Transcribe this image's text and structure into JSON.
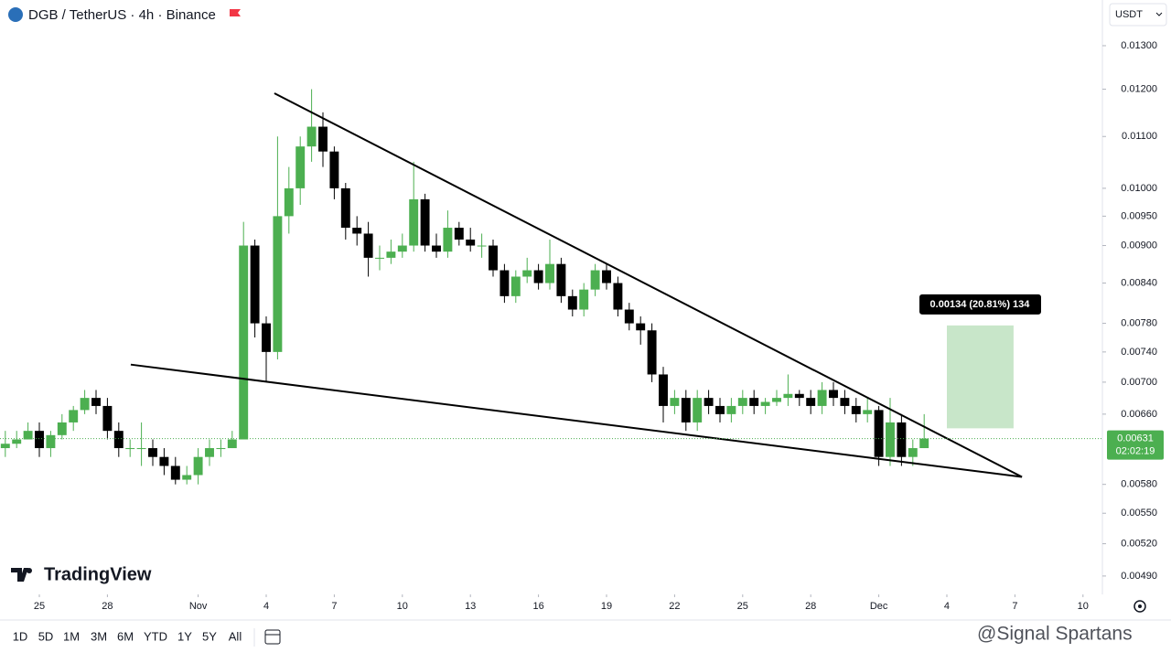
{
  "header": {
    "symbol": "DGB / TetherUS · 4h · Binance",
    "currency": "USDT"
  },
  "chart_data": {
    "type": "candlestick",
    "log_scale": true,
    "up_color": "#4caf50",
    "down_color": "#000000",
    "x": [
      -1.5,
      -1,
      -0.5,
      0,
      0.5,
      1,
      1.5,
      2,
      2.5,
      3,
      3.5,
      4,
      4.5,
      5,
      5.5,
      6,
      6.5,
      7,
      7.5,
      8,
      8.5,
      9,
      9.5,
      10,
      10.5,
      11,
      11.5,
      12,
      12.5,
      13,
      13.5,
      14,
      14.5,
      15,
      15.5,
      16,
      16.5,
      17,
      17.5,
      18,
      18.5,
      19,
      19.5,
      20,
      20.5,
      21,
      21.5,
      22,
      22.5,
      23,
      23.5,
      24,
      24.5,
      25,
      25.5,
      26,
      26.5,
      27,
      27.5,
      28,
      28.5,
      29,
      29.5,
      30,
      30.5,
      31,
      31.5,
      32,
      32.5,
      33,
      33.5,
      34,
      34.5,
      35,
      35.5,
      36,
      36.5,
      37,
      37.5,
      38,
      38.5,
      39
    ],
    "open": [
      0.0062,
      0.00625,
      0.0063,
      0.0064,
      0.0062,
      0.00635,
      0.0065,
      0.00665,
      0.0068,
      0.0067,
      0.0064,
      0.0062,
      0.0062,
      0.0062,
      0.0061,
      0.006,
      0.00585,
      0.0059,
      0.0061,
      0.0062,
      0.0062,
      0.0063,
      0.009,
      0.0078,
      0.0074,
      0.0095,
      0.01,
      0.0108,
      0.0112,
      0.0107,
      0.01,
      0.0093,
      0.0092,
      0.0088,
      0.0088,
      0.0089,
      0.009,
      0.0098,
      0.009,
      0.0089,
      0.0093,
      0.0091,
      0.009,
      0.009,
      0.0086,
      0.0082,
      0.0085,
      0.0086,
      0.0084,
      0.0087,
      0.0082,
      0.008,
      0.0083,
      0.0086,
      0.0084,
      0.008,
      0.0078,
      0.0077,
      0.0071,
      0.0067,
      0.0068,
      0.0065,
      0.0068,
      0.0067,
      0.0066,
      0.0067,
      0.0068,
      0.0067,
      0.00675,
      0.0068,
      0.00685,
      0.0068,
      0.0067,
      0.0069,
      0.0068,
      0.0067,
      0.0066,
      0.00665,
      0.0061,
      0.0065,
      0.0061,
      0.0062
    ],
    "high": [
      0.0064,
      0.0064,
      0.0065,
      0.0065,
      0.0064,
      0.0066,
      0.0067,
      0.0069,
      0.0069,
      0.0068,
      0.0065,
      0.0063,
      0.0065,
      0.0063,
      0.0062,
      0.0061,
      0.006,
      0.0062,
      0.0063,
      0.0063,
      0.0064,
      0.0094,
      0.0091,
      0.0079,
      0.011,
      0.0104,
      0.011,
      0.012,
      0.0115,
      0.0108,
      0.0101,
      0.0095,
      0.0094,
      0.009,
      0.0091,
      0.0092,
      0.0105,
      0.0099,
      0.0092,
      0.0096,
      0.0094,
      0.0093,
      0.0092,
      0.0091,
      0.0087,
      0.0086,
      0.0088,
      0.0087,
      0.0091,
      0.0088,
      0.0083,
      0.0084,
      0.0087,
      0.0087,
      0.0085,
      0.0081,
      0.0079,
      0.0078,
      0.0072,
      0.0069,
      0.0069,
      0.0069,
      0.0069,
      0.0068,
      0.0068,
      0.0069,
      0.0069,
      0.0068,
      0.0069,
      0.0071,
      0.0069,
      0.0069,
      0.007,
      0.007,
      0.0069,
      0.0068,
      0.0068,
      0.0067,
      0.0068,
      0.0066,
      0.0063,
      0.0066
    ],
    "low": [
      0.0061,
      0.0062,
      0.0063,
      0.0061,
      0.0061,
      0.0063,
      0.0064,
      0.0066,
      0.0066,
      0.0063,
      0.0061,
      0.0061,
      0.006,
      0.006,
      0.0059,
      0.0058,
      0.0058,
      0.0058,
      0.006,
      0.0061,
      0.0062,
      0.0063,
      0.0076,
      0.007,
      0.0073,
      0.0092,
      0.0097,
      0.0105,
      0.0104,
      0.0098,
      0.0091,
      0.009,
      0.0085,
      0.0086,
      0.0087,
      0.0088,
      0.0089,
      0.0089,
      0.0088,
      0.0088,
      0.009,
      0.0089,
      0.0088,
      0.0085,
      0.0081,
      0.0081,
      0.0084,
      0.0083,
      0.0083,
      0.0081,
      0.0079,
      0.0079,
      0.0082,
      0.0083,
      0.0079,
      0.0077,
      0.0075,
      0.007,
      0.0065,
      0.0066,
      0.0064,
      0.0064,
      0.0066,
      0.0065,
      0.0065,
      0.0066,
      0.0066,
      0.0066,
      0.0067,
      0.0067,
      0.0067,
      0.0066,
      0.0066,
      0.0067,
      0.0066,
      0.0065,
      0.0065,
      0.006,
      0.006,
      0.006,
      0.006,
      0.0062
    ],
    "close": [
      0.00625,
      0.0063,
      0.0064,
      0.0062,
      0.00635,
      0.0065,
      0.00665,
      0.0068,
      0.0067,
      0.0064,
      0.0062,
      0.0062,
      0.0062,
      0.0061,
      0.006,
      0.00585,
      0.0059,
      0.0061,
      0.0062,
      0.0062,
      0.0063,
      0.009,
      0.0078,
      0.0074,
      0.0095,
      0.01,
      0.0108,
      0.0112,
      0.0107,
      0.01,
      0.0093,
      0.0092,
      0.0088,
      0.0088,
      0.0089,
      0.009,
      0.0098,
      0.009,
      0.0089,
      0.0093,
      0.0091,
      0.009,
      0.009,
      0.0086,
      0.0082,
      0.0085,
      0.0086,
      0.0084,
      0.0087,
      0.0082,
      0.008,
      0.0083,
      0.0086,
      0.0084,
      0.008,
      0.0078,
      0.0077,
      0.0071,
      0.0067,
      0.0068,
      0.0065,
      0.0068,
      0.0067,
      0.0066,
      0.0067,
      0.0068,
      0.0067,
      0.00675,
      0.0068,
      0.00685,
      0.0068,
      0.0067,
      0.0069,
      0.0068,
      0.0067,
      0.0066,
      0.00665,
      0.0061,
      0.0065,
      0.0061,
      0.0062,
      0.00631
    ],
    "xlim": [
      -1.734,
      46.855
    ],
    "xticks": [
      {
        "value": 0,
        "label": "25"
      },
      {
        "value": 3,
        "label": "28"
      },
      {
        "value": 7,
        "label": "Nov"
      },
      {
        "value": 10,
        "label": "4"
      },
      {
        "value": 13,
        "label": "7"
      },
      {
        "value": 16,
        "label": "10"
      },
      {
        "value": 19,
        "label": "13"
      },
      {
        "value": 22,
        "label": "16"
      },
      {
        "value": 25,
        "label": "19"
      },
      {
        "value": 28,
        "label": "22"
      },
      {
        "value": 31,
        "label": "25"
      },
      {
        "value": 34,
        "label": "28"
      },
      {
        "value": 37,
        "label": "Dec"
      },
      {
        "value": 40,
        "label": "4"
      },
      {
        "value": 43,
        "label": "7"
      },
      {
        "value": 46,
        "label": "10"
      }
    ],
    "ylim": [
      0.004737,
      0.01414
    ],
    "yticks": [
      {
        "value": 0.013,
        "label": "0.01300"
      },
      {
        "value": 0.012,
        "label": "0.01200"
      },
      {
        "value": 0.011,
        "label": "0.01100"
      },
      {
        "value": 0.01,
        "label": "0.01000"
      },
      {
        "value": 0.0095,
        "label": "0.00950"
      },
      {
        "value": 0.009,
        "label": "0.00900"
      },
      {
        "value": 0.0084,
        "label": "0.00840"
      },
      {
        "value": 0.0078,
        "label": "0.00780"
      },
      {
        "value": 0.0074,
        "label": "0.00740"
      },
      {
        "value": 0.007,
        "label": "0.00700"
      },
      {
        "value": 0.0066,
        "label": "0.00660"
      },
      {
        "value": 0.0058,
        "label": "0.00580"
      },
      {
        "value": 0.0055,
        "label": "0.00550"
      },
      {
        "value": 0.0052,
        "label": "0.00520"
      },
      {
        "value": 0.0049,
        "label": "0.00490"
      }
    ],
    "last_price": 0.00631,
    "countdown": "02:02:19",
    "last_color": "#4caf50",
    "trendlines": [
      {
        "x": [
          10.36,
          43.31
        ],
        "y": [
          0.01191,
          0.00588
        ]
      },
      {
        "x": [
          4.03,
          43.31
        ],
        "y": [
          0.00723,
          0.00588
        ]
      }
    ],
    "measure": {
      "x": [
        40,
        42.94
      ],
      "y": [
        0.00643,
        0.00777
      ],
      "label": "0.00134 (20.81%) 134",
      "color": "#c8e6c9"
    }
  },
  "branding": "TradingView",
  "toolbar": {
    "ranges": [
      "1D",
      "5D",
      "1M",
      "3M",
      "6M",
      "YTD",
      "1Y",
      "5Y",
      "All"
    ]
  },
  "watermark": "@Signal Spartans"
}
